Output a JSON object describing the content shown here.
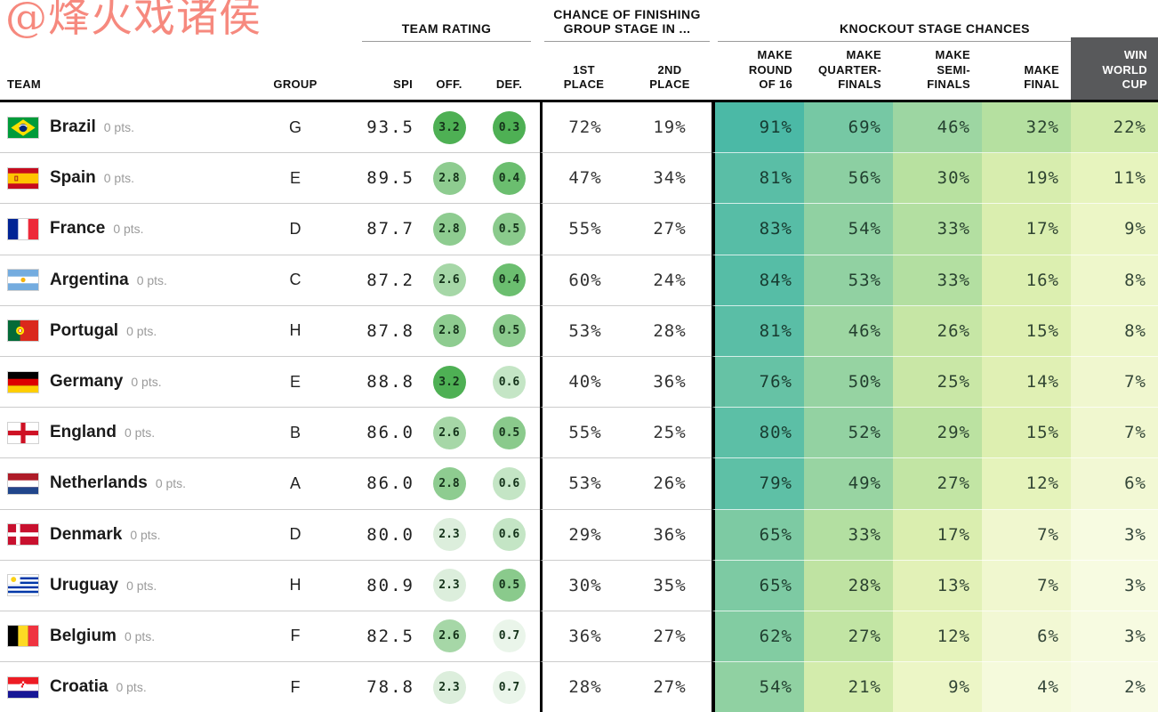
{
  "watermark": "@烽火戏诸侯",
  "header": {
    "sections": {
      "team_rating": "TEAM RATING",
      "group_stage": "CHANCE OF FINISHING\nGROUP STAGE IN ...",
      "knockout": "KNOCKOUT STAGE CHANCES"
    },
    "columns_map": {
      "team": "TEAM",
      "group": "GROUP",
      "spi": "SPI",
      "off": "OFF.",
      "def": "DEF.",
      "p1": "1ST\nPLACE",
      "p2": "2ND\nPLACE",
      "r16": "MAKE\nROUND\nOF 16",
      "qf": "MAKE\nQUARTER-\nFINALS",
      "sf": "MAKE\nSEMI-\nFINALS",
      "fin": "MAKE\nFINAL",
      "win": "WIN\nWORLD\nCUP"
    }
  },
  "colors": {
    "win_header_bg": "#58595b",
    "heat_low": "#fbfdee",
    "heat_high": "#3fb4a4",
    "circle_high": "#4eb054",
    "circle_low": "#eaf5ea",
    "watermark": "#f6897e"
  },
  "chart_data": {
    "type": "table",
    "columns": [
      "TEAM",
      "GROUP",
      "SPI",
      "OFF.",
      "DEF.",
      "1ST PLACE",
      "2ND PLACE",
      "MAKE ROUND OF 16",
      "MAKE QUARTER-FINALS",
      "MAKE SEMI-FINALS",
      "MAKE FINAL",
      "WIN WORLD CUP"
    ],
    "rows": [
      {
        "team": "Brazil",
        "points": "0 pts.",
        "flag": "brazil",
        "group": "G",
        "spi": "93.5",
        "off": "3.2",
        "def": "0.3",
        "first_place": 72,
        "second_place": 19,
        "make_round_of_16": 91,
        "make_quarterfinals": 69,
        "make_semifinals": 46,
        "make_final": 32,
        "win_world_cup": 22
      },
      {
        "team": "Spain",
        "points": "0 pts.",
        "flag": "spain",
        "group": "E",
        "spi": "89.5",
        "off": "2.8",
        "def": "0.4",
        "first_place": 47,
        "second_place": 34,
        "make_round_of_16": 81,
        "make_quarterfinals": 56,
        "make_semifinals": 30,
        "make_final": 19,
        "win_world_cup": 11
      },
      {
        "team": "France",
        "points": "0 pts.",
        "flag": "france",
        "group": "D",
        "spi": "87.7",
        "off": "2.8",
        "def": "0.5",
        "first_place": 55,
        "second_place": 27,
        "make_round_of_16": 83,
        "make_quarterfinals": 54,
        "make_semifinals": 33,
        "make_final": 17,
        "win_world_cup": 9
      },
      {
        "team": "Argentina",
        "points": "0 pts.",
        "flag": "argentina",
        "group": "C",
        "spi": "87.2",
        "off": "2.6",
        "def": "0.4",
        "first_place": 60,
        "second_place": 24,
        "make_round_of_16": 84,
        "make_quarterfinals": 53,
        "make_semifinals": 33,
        "make_final": 16,
        "win_world_cup": 8
      },
      {
        "team": "Portugal",
        "points": "0 pts.",
        "flag": "portugal",
        "group": "H",
        "spi": "87.8",
        "off": "2.8",
        "def": "0.5",
        "first_place": 53,
        "second_place": 28,
        "make_round_of_16": 81,
        "make_quarterfinals": 46,
        "make_semifinals": 26,
        "make_final": 15,
        "win_world_cup": 8
      },
      {
        "team": "Germany",
        "points": "0 pts.",
        "flag": "germany",
        "group": "E",
        "spi": "88.8",
        "off": "3.2",
        "def": "0.6",
        "first_place": 40,
        "second_place": 36,
        "make_round_of_16": 76,
        "make_quarterfinals": 50,
        "make_semifinals": 25,
        "make_final": 14,
        "win_world_cup": 7
      },
      {
        "team": "England",
        "points": "0 pts.",
        "flag": "england",
        "group": "B",
        "spi": "86.0",
        "off": "2.6",
        "def": "0.5",
        "first_place": 55,
        "second_place": 25,
        "make_round_of_16": 80,
        "make_quarterfinals": 52,
        "make_semifinals": 29,
        "make_final": 15,
        "win_world_cup": 7
      },
      {
        "team": "Netherlands",
        "points": "0 pts.",
        "flag": "netherlands",
        "group": "A",
        "spi": "86.0",
        "off": "2.8",
        "def": "0.6",
        "first_place": 53,
        "second_place": 26,
        "make_round_of_16": 79,
        "make_quarterfinals": 49,
        "make_semifinals": 27,
        "make_final": 12,
        "win_world_cup": 6
      },
      {
        "team": "Denmark",
        "points": "0 pts.",
        "flag": "denmark",
        "group": "D",
        "spi": "80.0",
        "off": "2.3",
        "def": "0.6",
        "first_place": 29,
        "second_place": 36,
        "make_round_of_16": 65,
        "make_quarterfinals": 33,
        "make_semifinals": 17,
        "make_final": 7,
        "win_world_cup": 3
      },
      {
        "team": "Uruguay",
        "points": "0 pts.",
        "flag": "uruguay",
        "group": "H",
        "spi": "80.9",
        "off": "2.3",
        "def": "0.5",
        "first_place": 30,
        "second_place": 35,
        "make_round_of_16": 65,
        "make_quarterfinals": 28,
        "make_semifinals": 13,
        "make_final": 7,
        "win_world_cup": 3
      },
      {
        "team": "Belgium",
        "points": "0 pts.",
        "flag": "belgium",
        "group": "F",
        "spi": "82.5",
        "off": "2.6",
        "def": "0.7",
        "first_place": 36,
        "second_place": 27,
        "make_round_of_16": 62,
        "make_quarterfinals": 27,
        "make_semifinals": 12,
        "make_final": 6,
        "win_world_cup": 3
      },
      {
        "team": "Croatia",
        "points": "0 pts.",
        "flag": "croatia",
        "group": "F",
        "spi": "78.8",
        "off": "2.3",
        "def": "0.7",
        "first_place": 28,
        "second_place": 27,
        "make_round_of_16": 54,
        "make_quarterfinals": 21,
        "make_semifinals": 9,
        "make_final": 4,
        "win_world_cup": 2
      }
    ]
  }
}
